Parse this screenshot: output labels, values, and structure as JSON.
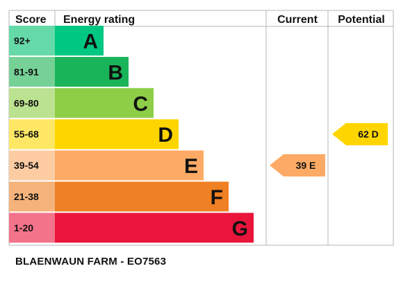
{
  "chart_data": {
    "type": "bar",
    "headers": {
      "score": "Score",
      "rating": "Energy rating",
      "current": "Current",
      "potential": "Potential"
    },
    "bands": [
      {
        "score": "92+",
        "letter": "A",
        "color": "#00c781",
        "score_color": "#66d9a8"
      },
      {
        "score": "81-91",
        "letter": "B",
        "color": "#19b459",
        "score_color": "#75d196"
      },
      {
        "score": "69-80",
        "letter": "C",
        "color": "#8dce46",
        "score_color": "#bbe290"
      },
      {
        "score": "55-68",
        "letter": "D",
        "color": "#ffd500",
        "score_color": "#ffe766"
      },
      {
        "score": "39-54",
        "letter": "E",
        "color": "#fcaa65",
        "score_color": "#fdcca3"
      },
      {
        "score": "21-38",
        "letter": "F",
        "color": "#ef8023",
        "score_color": "#f5b37b"
      },
      {
        "score": "1-20",
        "letter": "G",
        "color": "#e9153b",
        "score_color": "#f2738a"
      }
    ],
    "current": {
      "value": 39,
      "letter": "E",
      "color": "#fcaa65"
    },
    "potential": {
      "value": 62,
      "letter": "D",
      "color": "#ffd500"
    }
  },
  "footer": "BLAENWAUN FARM - EO7563"
}
